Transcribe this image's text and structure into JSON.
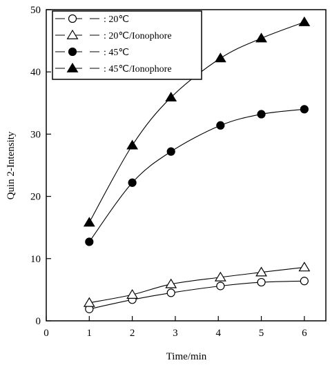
{
  "chart_data": {
    "type": "line",
    "title": "",
    "xlabel": "Time/min",
    "ylabel": "Quin 2-Intensity",
    "xlim": [
      0,
      6.5
    ],
    "ylim": [
      0,
      50
    ],
    "xticks": [
      0,
      1,
      2,
      3,
      4,
      5,
      6
    ],
    "yticks": [
      0,
      10,
      20,
      30,
      40,
      50
    ],
    "grid": false,
    "legend_position": "top-left",
    "series": [
      {
        "name": "20℃",
        "marker": "open-circle",
        "x": [
          1,
          2,
          2.9,
          4.05,
          5,
          6
        ],
        "y": [
          1.9,
          3.4,
          4.5,
          5.6,
          6.2,
          6.4
        ]
      },
      {
        "name": "20℃/Ionophore",
        "marker": "open-triangle",
        "x": [
          1,
          2,
          2.9,
          4.05,
          5,
          6
        ],
        "y": [
          2.9,
          4.2,
          5.9,
          7.0,
          7.8,
          8.6
        ]
      },
      {
        "name": "45℃",
        "marker": "filled-circle",
        "x": [
          1,
          2,
          2.9,
          4.05,
          5,
          6
        ],
        "y": [
          12.7,
          22.2,
          27.2,
          31.4,
          33.2,
          34.0
        ]
      },
      {
        "name": "45℃/Ionophore",
        "marker": "filled-triangle",
        "x": [
          1,
          2,
          2.9,
          4.05,
          5,
          6
        ],
        "y": [
          15.8,
          28.2,
          35.9,
          42.2,
          45.4,
          48.0
        ]
      }
    ],
    "colors": {
      "line": "#000000",
      "background": "#ffffff"
    }
  }
}
